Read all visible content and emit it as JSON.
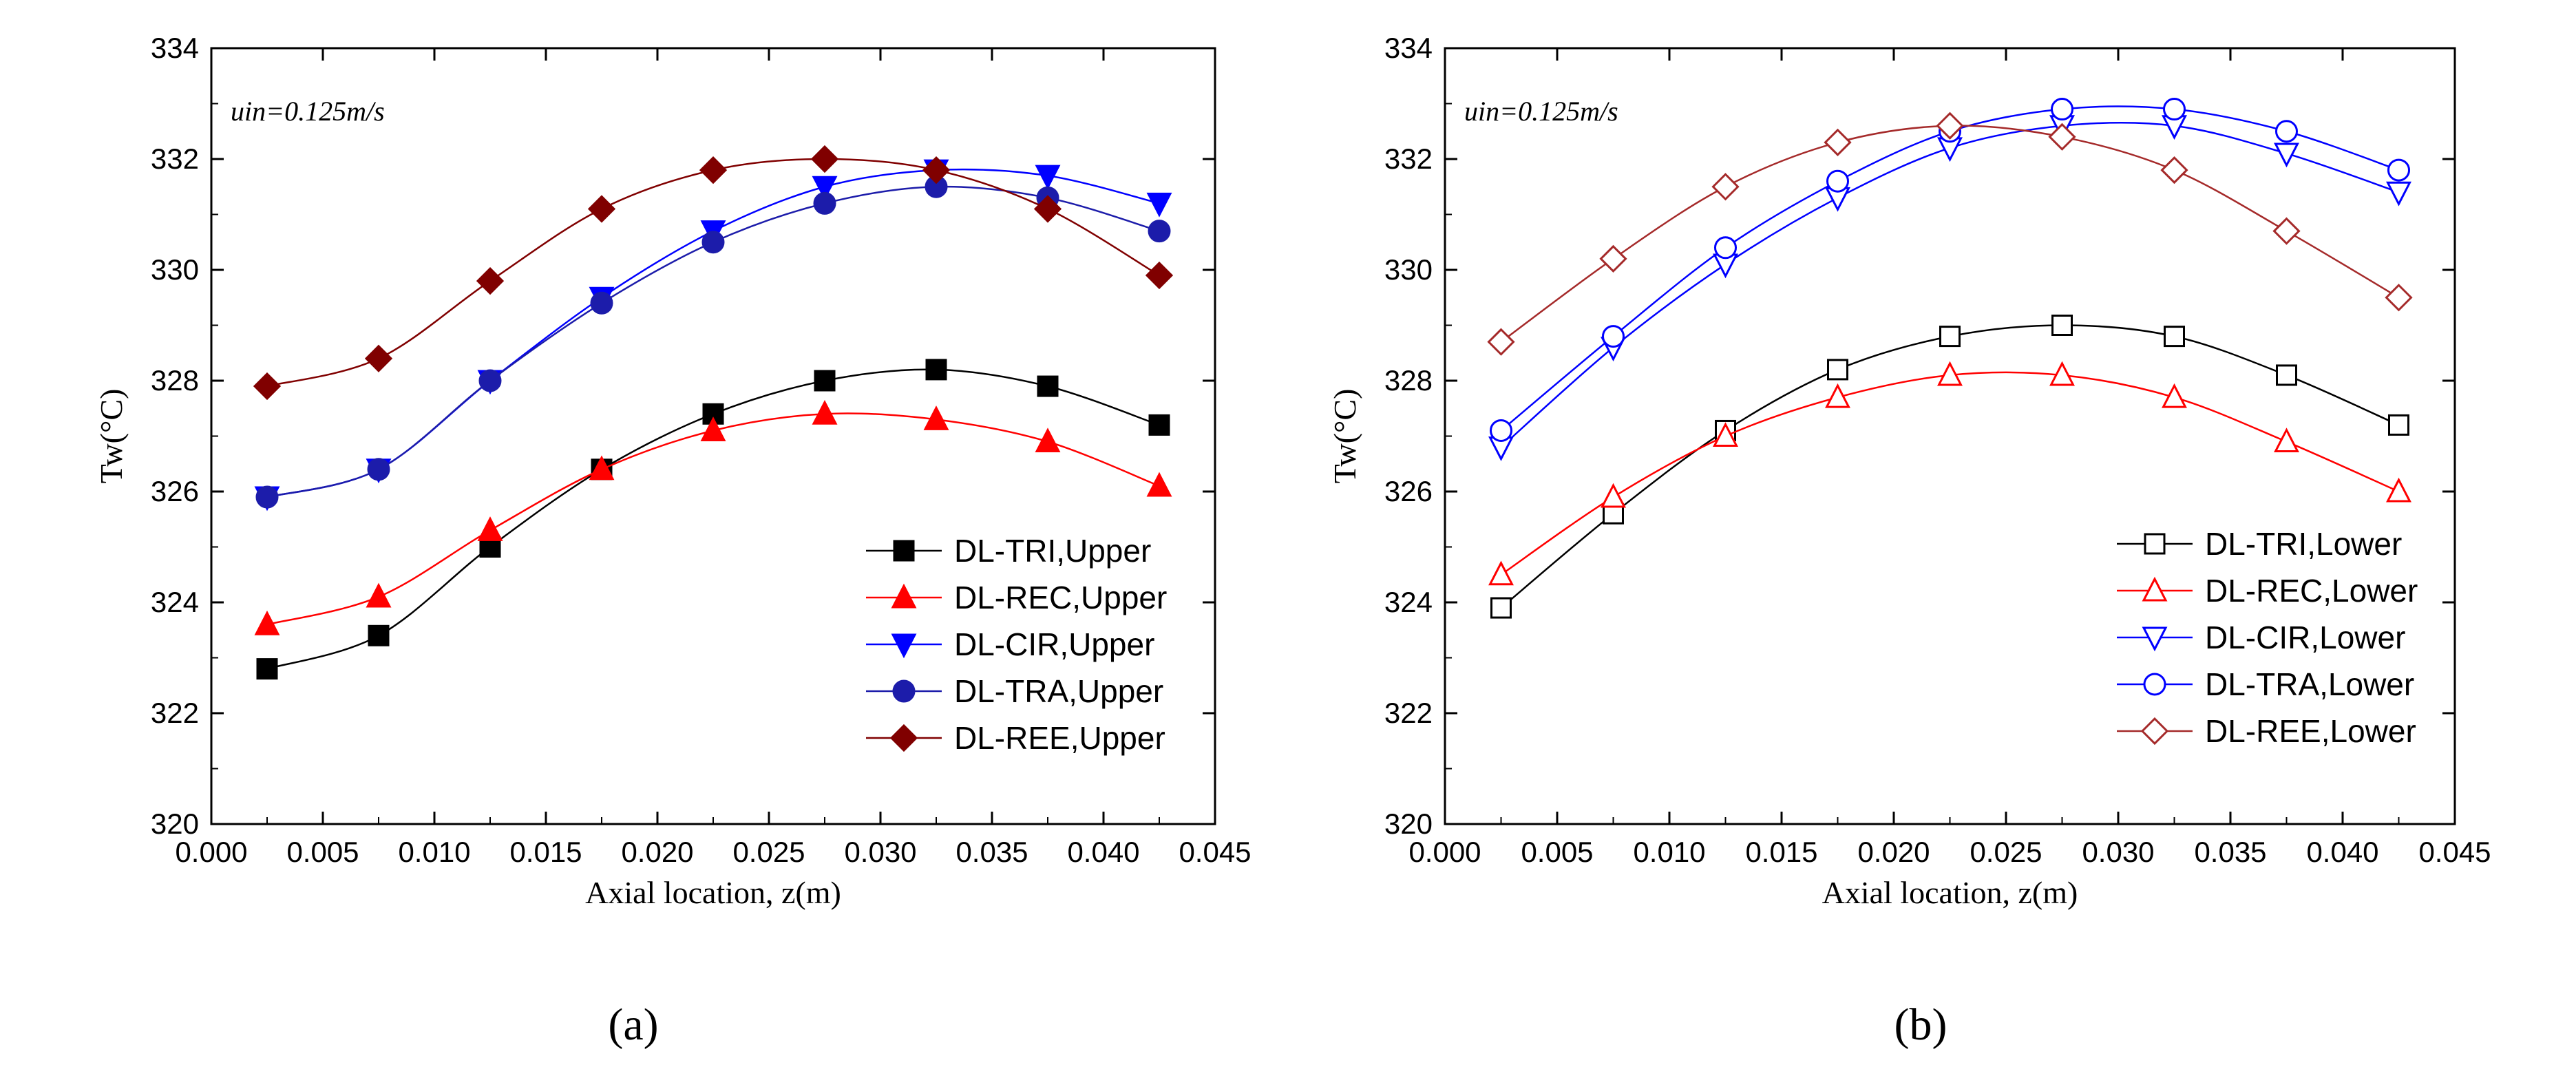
{
  "chart_data": [
    {
      "type": "line",
      "panel_label": "(a)",
      "xlabel": "Axial location, z(m)",
      "ylabel": "Tw(°C)",
      "annotation": "uin=0.125m/s",
      "xlim": [
        0.0,
        0.045
      ],
      "ylim": [
        320,
        334
      ],
      "xticks": [
        "0.000",
        "0.005",
        "0.010",
        "0.015",
        "0.020",
        "0.025",
        "0.030",
        "0.035",
        "0.040",
        "0.045"
      ],
      "yticks": [
        "320",
        "322",
        "324",
        "326",
        "328",
        "330",
        "332",
        "334"
      ],
      "legend_position": "bottom-right",
      "x": [
        0.0025,
        0.0075,
        0.0125,
        0.0175,
        0.0225,
        0.0275,
        0.0325,
        0.0375,
        0.0425
      ],
      "series": [
        {
          "name": "DL-TRI,Upper",
          "color": "#000000",
          "marker": "square-filled",
          "values": [
            322.8,
            323.4,
            325.0,
            326.4,
            327.4,
            328.0,
            328.2,
            327.9,
            327.2
          ]
        },
        {
          "name": "DL-REC,Upper",
          "color": "#ff0000",
          "marker": "triangle-up-filled",
          "values": [
            323.6,
            324.1,
            325.3,
            326.4,
            327.1,
            327.4,
            327.3,
            326.9,
            326.1
          ]
        },
        {
          "name": "DL-CIR,Upper",
          "color": "#0000ff",
          "marker": "triangle-down-filled",
          "values": [
            325.9,
            326.4,
            328.0,
            329.5,
            330.7,
            331.5,
            331.8,
            331.7,
            331.2
          ]
        },
        {
          "name": "DL-TRA,Upper",
          "color": "#1c1caa",
          "marker": "circle-filled",
          "values": [
            325.9,
            326.4,
            328.0,
            329.4,
            330.5,
            331.2,
            331.5,
            331.3,
            330.7
          ]
        },
        {
          "name": "DL-REE,Upper",
          "color": "#800000",
          "marker": "diamond-filled",
          "values": [
            327.9,
            328.4,
            329.8,
            331.1,
            331.8,
            332.0,
            331.8,
            331.1,
            329.9
          ]
        }
      ]
    },
    {
      "type": "line",
      "panel_label": "(b)",
      "xlabel": "Axial location, z(m)",
      "ylabel": "Tw(°C)",
      "annotation": "uin=0.125m/s",
      "xlim": [
        0.0,
        0.045
      ],
      "ylim": [
        320,
        334
      ],
      "xticks": [
        "0.000",
        "0.005",
        "0.010",
        "0.015",
        "0.020",
        "0.025",
        "0.030",
        "0.035",
        "0.040",
        "0.045"
      ],
      "yticks": [
        "320",
        "322",
        "324",
        "326",
        "328",
        "330",
        "332",
        "334"
      ],
      "legend_position": "bottom-right",
      "x": [
        0.0025,
        0.0075,
        0.0125,
        0.0175,
        0.0225,
        0.0275,
        0.0325,
        0.0375,
        0.0425
      ],
      "series": [
        {
          "name": "DL-TRI,Lower",
          "color": "#000000",
          "marker": "square-open",
          "values": [
            323.9,
            325.6,
            327.1,
            328.2,
            328.8,
            329.0,
            328.8,
            328.1,
            327.2
          ]
        },
        {
          "name": "DL-REC,Lower",
          "color": "#ff0000",
          "marker": "triangle-up-open",
          "values": [
            324.5,
            325.9,
            327.0,
            327.7,
            328.1,
            328.1,
            327.7,
            326.9,
            326.0
          ]
        },
        {
          "name": "DL-CIR,Lower",
          "color": "#0000ff",
          "marker": "triangle-down-open",
          "values": [
            326.8,
            328.6,
            330.1,
            331.3,
            332.2,
            332.6,
            332.6,
            332.1,
            331.4
          ]
        },
        {
          "name": "DL-TRA,Lower",
          "color": "#0000ff",
          "marker": "circle-open",
          "values": [
            327.1,
            328.8,
            330.4,
            331.6,
            332.5,
            332.9,
            332.9,
            332.5,
            331.8
          ]
        },
        {
          "name": "DL-REE,Lower",
          "color": "#a52a2a",
          "marker": "diamond-open",
          "values": [
            328.7,
            330.2,
            331.5,
            332.3,
            332.6,
            332.4,
            331.8,
            330.7,
            329.5
          ]
        }
      ]
    }
  ]
}
